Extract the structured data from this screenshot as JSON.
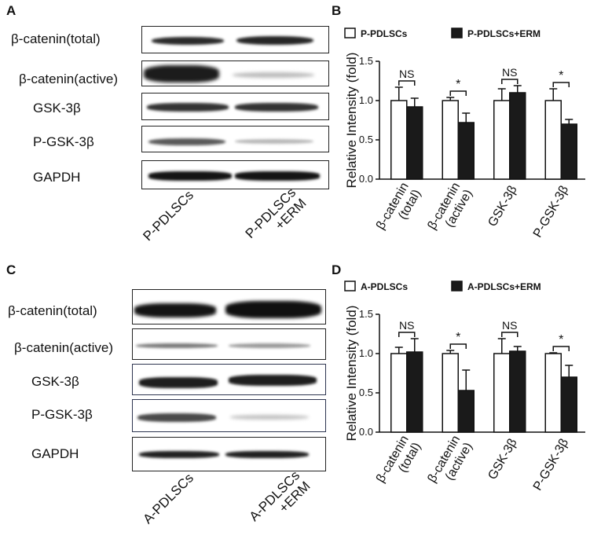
{
  "panels": {
    "A": {
      "letter": "A",
      "rows": [
        "β-catenin(total)",
        "β-catenin(active)",
        "GSK-3β",
        "P-GSK-3β",
        "GAPDH"
      ],
      "lanes": [
        [
          "P-PDLSCs"
        ],
        [
          "P-PDLSCs",
          "+ERM"
        ]
      ]
    },
    "B": {
      "letter": "B"
    },
    "C": {
      "letter": "C",
      "rows": [
        "β-catenin(total)",
        "β-catenin(active)",
        "GSK-3β",
        "P-GSK-3β",
        "GAPDH"
      ],
      "lanes": [
        [
          "A-PDLSCs"
        ],
        [
          "A-PDLSCs",
          "+ERM"
        ]
      ]
    },
    "D": {
      "letter": "D"
    }
  },
  "chart_data": [
    {
      "panel": "B",
      "type": "bar",
      "ylabel": "Relative Intensity (fold)",
      "ylim": [
        0,
        1.5
      ],
      "yticks": [
        "0.0",
        "0.5",
        "1.0",
        "1.5"
      ],
      "categories": [
        [
          "β-catenin",
          "(total)"
        ],
        [
          "β-catenin",
          "(active)"
        ],
        [
          "GSK-3β"
        ],
        [
          "P-GSK-3β"
        ]
      ],
      "series": [
        {
          "name": "P-PDLSCs",
          "fill": "#ffffff",
          "values": [
            1.0,
            1.0,
            1.0,
            1.0
          ],
          "errors": [
            0.17,
            0.04,
            0.15,
            0.15
          ]
        },
        {
          "name": "P-PDLSCs+ERM",
          "fill": "#1a1a1a",
          "values": [
            0.92,
            0.72,
            1.1,
            0.7
          ],
          "errors": [
            0.11,
            0.12,
            0.09,
            0.06
          ]
        }
      ],
      "significance": [
        "NS",
        "*",
        "NS",
        "*"
      ],
      "legend_position": "top"
    },
    {
      "panel": "D",
      "type": "bar",
      "ylabel": "Relative Intensity (fold)",
      "ylim": [
        0,
        1.5
      ],
      "yticks": [
        "0.0",
        "0.5",
        "1.0",
        "1.5"
      ],
      "categories": [
        [
          "β-catenin",
          "(total)"
        ],
        [
          "β-catenin",
          "(active)"
        ],
        [
          "GSK-3β"
        ],
        [
          "P-GSK-3β"
        ]
      ],
      "series": [
        {
          "name": "A-PDLSCs",
          "fill": "#ffffff",
          "values": [
            1.0,
            1.0,
            1.0,
            1.0
          ],
          "errors": [
            0.08,
            0.04,
            0.19,
            0.01
          ]
        },
        {
          "name": "A-PDLSCs+ERM",
          "fill": "#1a1a1a",
          "values": [
            1.02,
            0.53,
            1.03,
            0.7
          ],
          "errors": [
            0.17,
            0.26,
            0.06,
            0.15
          ]
        }
      ],
      "significance": [
        "NS",
        "*",
        "NS",
        "*"
      ],
      "legend_position": "top"
    }
  ]
}
